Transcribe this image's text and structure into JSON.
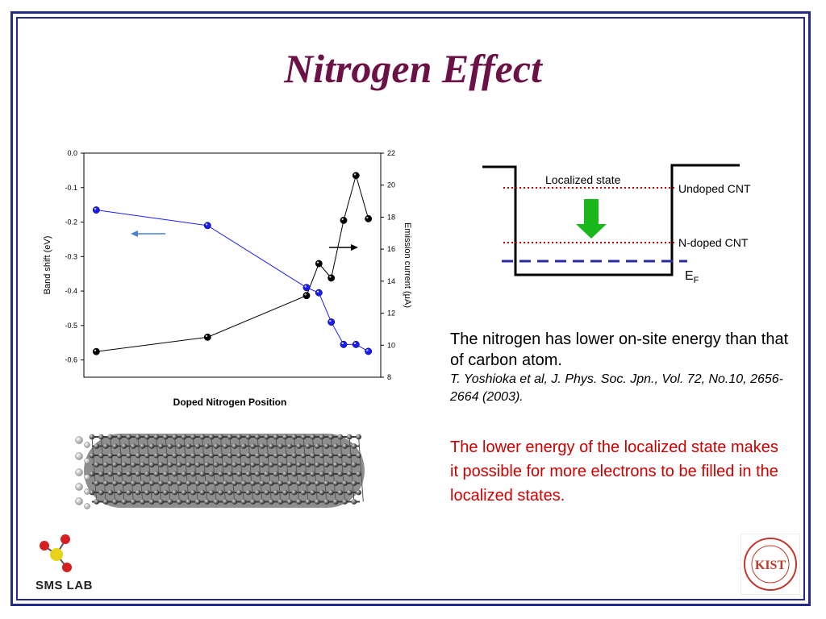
{
  "title": "Nitrogen Effect",
  "chart_data": {
    "type": "line",
    "xlabel": "Doped Nitrogen Position",
    "ylabel_left": "Band shift (eV)",
    "ylabel_right": "Emission current (μA)",
    "ylim_left": [
      -0.65,
      0.0
    ],
    "ylim_right": [
      8,
      22
    ],
    "yticks_left": [
      "0.0",
      "-0.1",
      "-0.2",
      "-0.3",
      "-0.4",
      "-0.5",
      "-0.6"
    ],
    "yticks_right": [
      "22",
      "20",
      "18",
      "16",
      "14",
      "12",
      "10",
      "8"
    ],
    "grid": false,
    "series": [
      {
        "axis": "left",
        "color": "#1a1aff",
        "x": [
          1,
          10,
          18,
          19,
          20,
          21,
          22,
          23
        ],
        "values": [
          -0.165,
          -0.21,
          -0.39,
          -0.405,
          -0.49,
          -0.555,
          -0.555,
          -0.575
        ]
      },
      {
        "axis": "right",
        "color": "#000000",
        "x": [
          1,
          10,
          18,
          19,
          20,
          21,
          22,
          23
        ],
        "values": [
          9.6,
          10.5,
          13.1,
          15.1,
          14.2,
          17.8,
          20.6,
          17.9
        ]
      }
    ]
  },
  "diagram": {
    "localized_label": "Localized state",
    "undoped_label": "Undoped CNT",
    "ndoped_label": "N-doped CNT",
    "ef_main": "E",
    "ef_sub": "F"
  },
  "text1": {
    "main": "The nitrogen has lower on-site energy than that of carbon atom.",
    "ref": "T. Yoshioka et al, J. Phys. Soc. Jpn., Vol. 72, No.10, 2656-2664 (2003)."
  },
  "text2": "The lower energy of the localized state makes it possible for more electrons to be filled in the localized states.",
  "logos": {
    "sms": "SMS LAB",
    "kist_main": "KIST"
  }
}
